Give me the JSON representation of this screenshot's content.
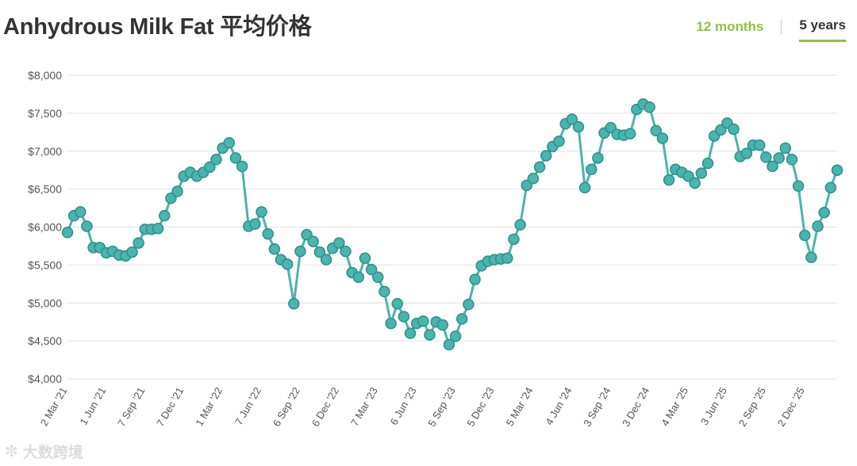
{
  "header": {
    "title": "Anhydrous Milk Fat 平均价格"
  },
  "tabs": [
    {
      "label": "12 months",
      "active": false
    },
    {
      "label": "5 years",
      "active": true
    }
  ],
  "colors": {
    "line": "#4db3ac",
    "marker": "#49b5ac",
    "marker_stroke": "#2f8f89",
    "accent": "#8cc43c",
    "grid": "#e2e2e2"
  },
  "watermark": {
    "icon": "logo-icon",
    "text": "大数跨境"
  },
  "chart_data": {
    "type": "line",
    "title": "",
    "xlabel": "",
    "ylabel": "",
    "ylim": [
      4000,
      8000
    ],
    "yticks": [
      "$4,000",
      "$4,500",
      "$5,000",
      "$5,500",
      "$6,000",
      "$6,500",
      "$7,000",
      "$7,500",
      "$8,000"
    ],
    "xticks": [
      "2 Mar '21",
      "1 Jun '21",
      "7 Sep '21",
      "7 Dec '21",
      "1 Mar '22",
      "7 Jun '22",
      "6 Sep '22",
      "6 Dec '22",
      "7 Mar '23",
      "6 Jun '23",
      "5 Sep '23",
      "5 Dec '23",
      "5 Mar '24",
      "4 Jun '24",
      "3 Sep '24",
      "3 Dec '24",
      "4 Mar '25",
      "3 Jun '25",
      "2 Sep '25",
      "2 Dec '25"
    ],
    "grid": true,
    "legend": "none",
    "series": [
      {
        "values": [
          5930,
          6150,
          6200,
          6010,
          5730,
          5730,
          5660,
          5680,
          5630,
          5620,
          5670,
          5790,
          5970,
          5970,
          5980,
          6150,
          6380,
          6470,
          6670,
          6720,
          6670,
          6720,
          6790,
          6890,
          7040,
          7110,
          6910,
          6800,
          6010,
          6040,
          6200,
          5910,
          5710,
          5570,
          5510,
          4990,
          5680,
          5900,
          5810,
          5670,
          5570,
          5720,
          5790,
          5680,
          5400,
          5340,
          5590,
          5440,
          5340,
          5150,
          4730,
          4990,
          4820,
          4600,
          4730,
          4760,
          4580,
          4750,
          4710,
          4450,
          4560,
          4790,
          4980,
          5310,
          5490,
          5550,
          5570,
          5580,
          5590,
          5840,
          6030,
          6550,
          6640,
          6790,
          6940,
          7060,
          7130,
          7360,
          7420,
          7320,
          6520,
          6760,
          6910,
          7240,
          7310,
          7220,
          7210,
          7230,
          7550,
          7620,
          7580,
          7270,
          7170,
          6620,
          6760,
          6720,
          6670,
          6580,
          6710,
          6840,
          7200,
          7280,
          7370,
          7290,
          6930,
          6970,
          7080,
          7080,
          6920,
          6800,
          6910,
          7040,
          6890,
          6540,
          5890,
          5600,
          6010,
          6190,
          6520,
          6750
        ]
      }
    ]
  }
}
